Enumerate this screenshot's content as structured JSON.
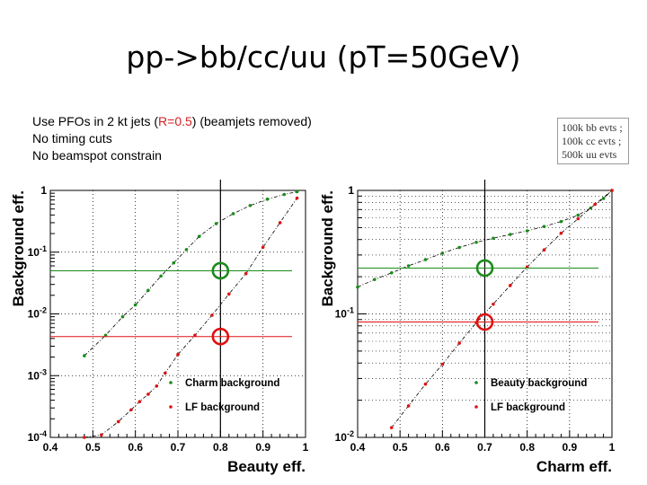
{
  "slide": {
    "title": "pp->bb/cc/uu (pT=50GeV)",
    "notes": {
      "line1_pre": "Use PFOs in 2 kt jets (",
      "line1_hl": "R=0.5",
      "line1_post": ") (beamjets removed)",
      "line2": "No timing cuts",
      "line3": "No beamspot constrain"
    },
    "stats": [
      "100k bb evts ;",
      "100k cc evts ;",
      "500k uu evts"
    ]
  },
  "colors": {
    "green": "#1a8c1a",
    "red": "#e01010",
    "curve": "#000000"
  },
  "chart_data": [
    {
      "type": "scatter",
      "xlabel": "Beauty eff.",
      "ylabel": "Background eff.",
      "xlim": [
        0.4,
        1.0
      ],
      "ylim": [
        0.0001,
        1
      ],
      "yscale": "log",
      "xticks": [
        0.4,
        0.5,
        0.6,
        0.7,
        0.8,
        0.9,
        1
      ],
      "xtick_labels": [
        "0.4",
        "0.5",
        "0.6",
        "0.7",
        "0.8",
        "0.9",
        "1"
      ],
      "yticks": [
        0.0001,
        0.001,
        0.01,
        0.1,
        1
      ],
      "ytick_labels": [
        "10-4",
        "10-3",
        "10-2",
        "10-1",
        "1"
      ],
      "grid": true,
      "legend_position": "bottom-right",
      "series": [
        {
          "name": "Charm background",
          "color": "green",
          "points": [
            [
              0.48,
              0.0021
            ],
            [
              0.53,
              0.0045
            ],
            [
              0.57,
              0.009
            ],
            [
              0.6,
              0.014
            ],
            [
              0.63,
              0.024
            ],
            [
              0.66,
              0.041
            ],
            [
              0.69,
              0.067
            ],
            [
              0.72,
              0.11
            ],
            [
              0.75,
              0.18
            ],
            [
              0.79,
              0.29
            ],
            [
              0.83,
              0.42
            ],
            [
              0.87,
              0.57
            ],
            [
              0.91,
              0.72
            ],
            [
              0.95,
              0.86
            ],
            [
              0.98,
              0.95
            ]
          ]
        },
        {
          "name": "LF background",
          "color": "red",
          "points": [
            [
              0.48,
              7e-05
            ],
            [
              0.52,
              0.00011
            ],
            [
              0.56,
              0.00018
            ],
            [
              0.59,
              0.00028
            ],
            [
              0.61,
              0.00038
            ],
            [
              0.63,
              0.0005
            ],
            [
              0.65,
              0.00068
            ],
            [
              0.67,
              0.0011
            ],
            [
              0.7,
              0.0022
            ],
            [
              0.74,
              0.0045
            ],
            [
              0.78,
              0.0095
            ],
            [
              0.82,
              0.021
            ],
            [
              0.86,
              0.045
            ],
            [
              0.9,
              0.12
            ],
            [
              0.94,
              0.3
            ],
            [
              0.98,
              0.75
            ]
          ]
        }
      ],
      "reference_lines": [
        {
          "color": "green",
          "y": 0.05,
          "marker_x": 0.8
        },
        {
          "color": "red",
          "y": 0.0043,
          "marker_x": 0.8
        }
      ],
      "vertical_line_x": 0.8
    },
    {
      "type": "scatter",
      "xlabel": "Charm eff.",
      "ylabel": "Background eff.",
      "xlim": [
        0.4,
        1.0
      ],
      "ylim": [
        0.01,
        1
      ],
      "yscale": "log",
      "xticks": [
        0.4,
        0.5,
        0.6,
        0.7,
        0.8,
        0.9,
        1
      ],
      "xtick_labels": [
        "0.4",
        "0.5",
        "0.6",
        "0.7",
        "0.8",
        "0.9",
        "1"
      ],
      "yticks": [
        0.01,
        0.1,
        1
      ],
      "ytick_labels": [
        "10-2",
        "10-1",
        "1"
      ],
      "grid": true,
      "legend_position": "bottom-right",
      "series": [
        {
          "name": "Beauty background",
          "color": "green",
          "points": [
            [
              0.4,
              0.165
            ],
            [
              0.44,
              0.19
            ],
            [
              0.48,
              0.215
            ],
            [
              0.52,
              0.245
            ],
            [
              0.56,
              0.275
            ],
            [
              0.6,
              0.31
            ],
            [
              0.64,
              0.345
            ],
            [
              0.68,
              0.38
            ],
            [
              0.72,
              0.41
            ],
            [
              0.76,
              0.44
            ],
            [
              0.8,
              0.47
            ],
            [
              0.84,
              0.51
            ],
            [
              0.88,
              0.56
            ],
            [
              0.92,
              0.63
            ],
            [
              0.95,
              0.72
            ],
            [
              0.98,
              0.86
            ],
            [
              1.0,
              1.0
            ]
          ]
        },
        {
          "name": "LF background",
          "color": "red",
          "points": [
            [
              0.48,
              0.012
            ],
            [
              0.52,
              0.018
            ],
            [
              0.56,
              0.027
            ],
            [
              0.6,
              0.039
            ],
            [
              0.64,
              0.058
            ],
            [
              0.68,
              0.085
            ],
            [
              0.72,
              0.12
            ],
            [
              0.76,
              0.17
            ],
            [
              0.8,
              0.24
            ],
            [
              0.84,
              0.33
            ],
            [
              0.88,
              0.45
            ],
            [
              0.92,
              0.59
            ],
            [
              0.96,
              0.77
            ],
            [
              1.0,
              1.0
            ]
          ]
        }
      ],
      "reference_lines": [
        {
          "color": "green",
          "y": 0.235,
          "marker_x": 0.7
        },
        {
          "color": "red",
          "y": 0.086,
          "marker_x": 0.7
        }
      ],
      "vertical_line_x": 0.7
    }
  ]
}
